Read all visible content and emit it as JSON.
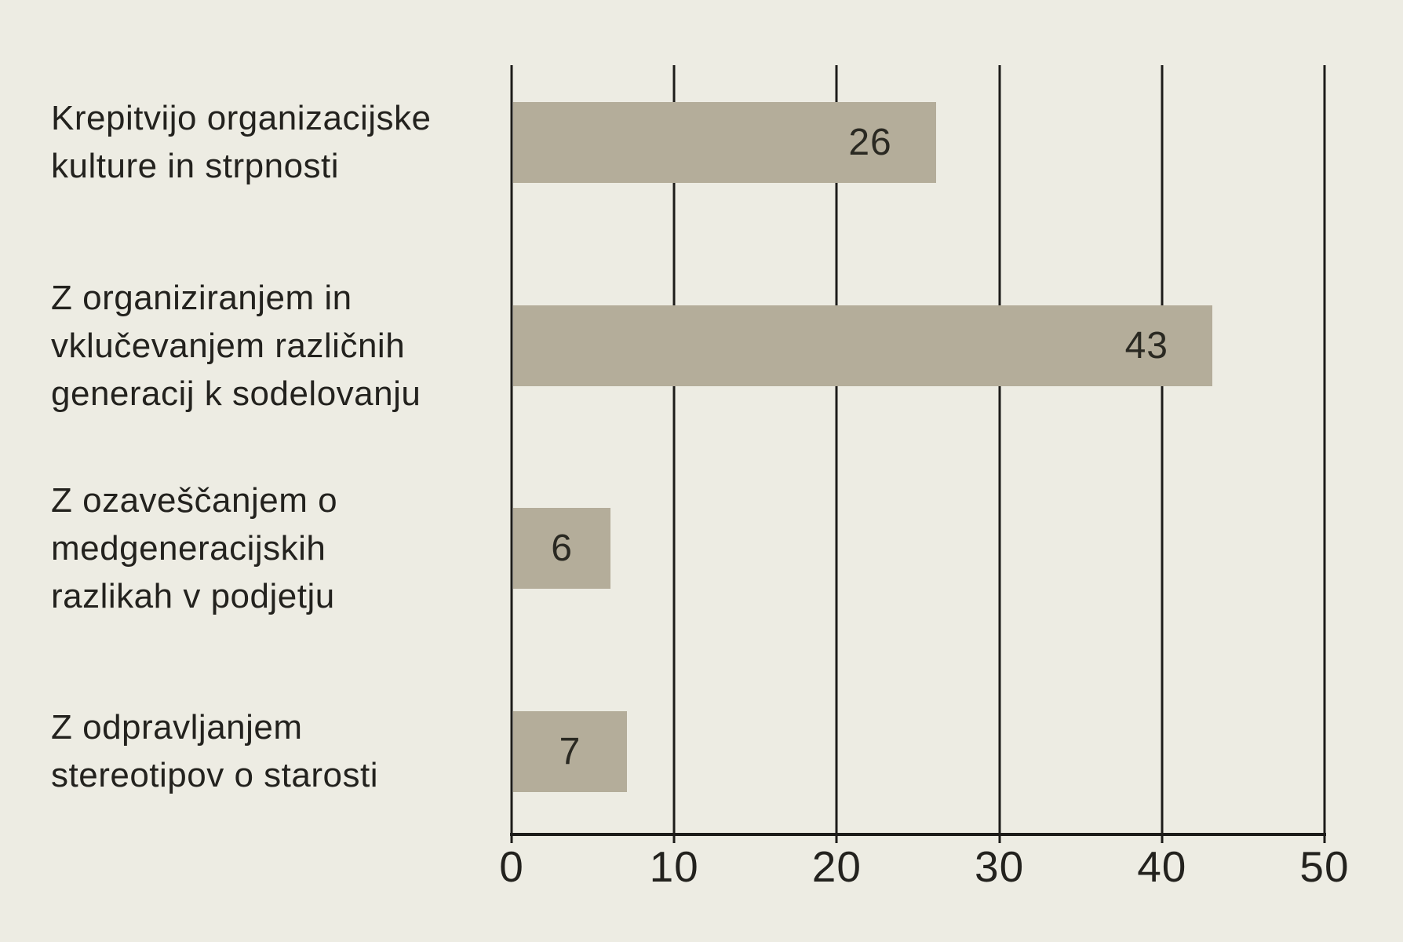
{
  "chart_data": {
    "type": "bar",
    "orientation": "horizontal",
    "title": "",
    "xlabel": "",
    "ylabel": "",
    "categories": [
      "Krepitvijo organizacijske kulture in strpnosti",
      "Z organiziranjem in vklučevanjem različnih generacij k sodelovanju",
      "Z ozaveščanjem o medgeneracijskih razlikah v podjetju",
      "Z odpravljanjem stereotipov o starosti"
    ],
    "categories_wrapped": [
      [
        "Krepitvijo organizacijske",
        "kulture in strpnosti"
      ],
      [
        "Z organiziranjem in",
        "vklučevanjem različnih",
        "generacij k sodelovanju"
      ],
      [
        "Z ozaveščanjem o",
        "medgeneracijskih",
        "razlikah v podjetju"
      ],
      [
        "Z odpravljanjem",
        "stereotipov o starosti"
      ]
    ],
    "values": [
      26,
      43,
      6,
      7
    ],
    "value_labels": [
      "26",
      "43",
      "6",
      "7"
    ],
    "xlim": [
      0,
      50
    ],
    "x_ticks": [
      0,
      10,
      20,
      30,
      40,
      50
    ],
    "grid": "vertical-full-height",
    "legend": "none",
    "colors": {
      "background": "#EDECE3",
      "bar": "#B4AD9A",
      "text": "#23221E",
      "grid_axis": "#1D1C1A"
    }
  }
}
